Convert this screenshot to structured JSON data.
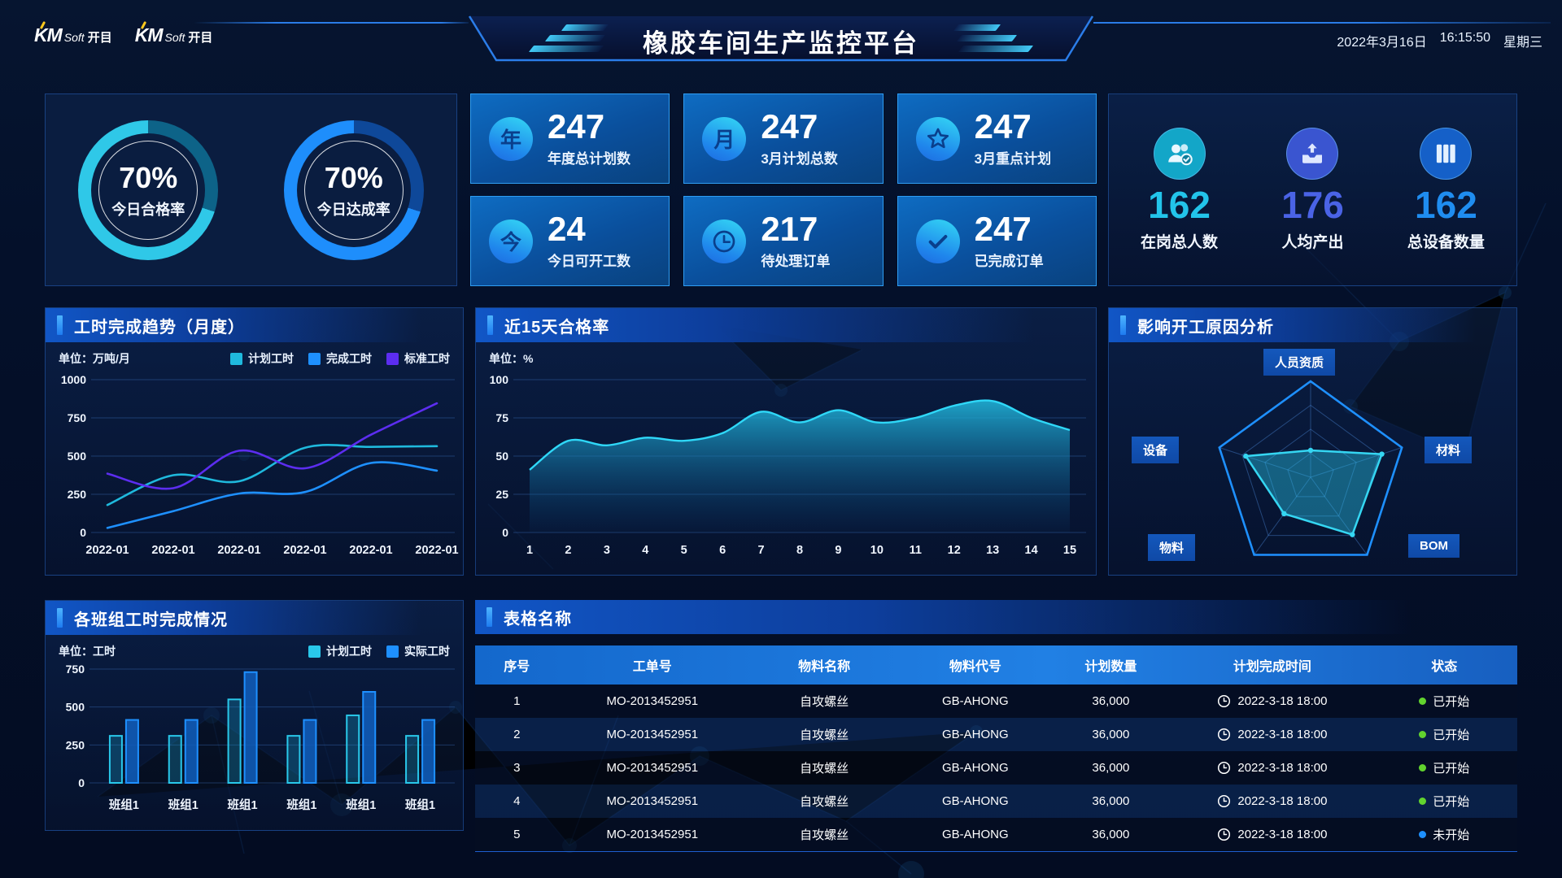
{
  "header": {
    "logo": {
      "mark": "KM",
      "soft": "Soft",
      "cjk": "开目"
    },
    "title": "橡胶车间生产监控平台",
    "date": "2022年3月16日",
    "time": "16:15:50",
    "weekday": "星期三"
  },
  "gauges": [
    {
      "value": "70%",
      "pct": 70,
      "label": "今日合格率",
      "color": "#2fc8e8",
      "track": "#0d6388"
    },
    {
      "value": "70%",
      "pct": 70,
      "label": "今日达成率",
      "color": "#1e8efc",
      "track": "#0e4899"
    }
  ],
  "stat_cards": [
    {
      "icon": "year-icon",
      "glyph": "年",
      "value": "247",
      "label": "年度总计划数"
    },
    {
      "icon": "month-icon",
      "glyph": "月",
      "value": "247",
      "label": "3月计划总数"
    },
    {
      "icon": "star-icon",
      "value": "247",
      "label": "3月重点计划"
    },
    {
      "icon": "today-icon",
      "glyph": "今",
      "value": "24",
      "label": "今日可开工数"
    },
    {
      "icon": "clock-icon",
      "value": "217",
      "label": "待处理订单"
    },
    {
      "icon": "check-icon",
      "value": "247",
      "label": "已完成订单"
    }
  ],
  "kpis": [
    {
      "icon": "users-icon",
      "value": "162",
      "label": "在岗总人数",
      "color": "#22c4ea",
      "bg": "#13a6c8"
    },
    {
      "icon": "output-icon",
      "value": "176",
      "label": "人均产出",
      "color": "#4a63e6",
      "bg": "#3a55d0"
    },
    {
      "icon": "devices-icon",
      "value": "162",
      "label": "总设备数量",
      "color": "#1f8df0",
      "bg": "#1560c8"
    }
  ],
  "panels": {
    "trend": {
      "title": "工时完成趋势（月度）",
      "unit": "单位：万吨/月"
    },
    "pass": {
      "title": "近15天合格率",
      "unit": "单位：%"
    },
    "radar": {
      "title": "影响开工原因分析"
    },
    "teams": {
      "title": "各班组工时完成情况",
      "unit": "单位：工时"
    },
    "table": {
      "title": "表格名称",
      "columns": [
        "序号",
        "工单号",
        "物料名称",
        "物料代号",
        "计划数量",
        "计划完成时间",
        "状态"
      ],
      "rows": [
        {
          "no": "1",
          "order": "MO-2013452951",
          "material": "自攻螺丝",
          "code": "GB-AHONG",
          "qty": "36,000",
          "time": "2022-3-18 18:00",
          "status": "已开始",
          "dot": "#62d32e"
        },
        {
          "no": "2",
          "order": "MO-2013452951",
          "material": "自攻螺丝",
          "code": "GB-AHONG",
          "qty": "36,000",
          "time": "2022-3-18 18:00",
          "status": "已开始",
          "dot": "#62d32e"
        },
        {
          "no": "3",
          "order": "MO-2013452951",
          "material": "自攻螺丝",
          "code": "GB-AHONG",
          "qty": "36,000",
          "time": "2022-3-18 18:00",
          "status": "已开始",
          "dot": "#62d32e"
        },
        {
          "no": "4",
          "order": "MO-2013452951",
          "material": "自攻螺丝",
          "code": "GB-AHONG",
          "qty": "36,000",
          "time": "2022-3-18 18:00",
          "status": "已开始",
          "dot": "#62d32e"
        },
        {
          "no": "5",
          "order": "MO-2013452951",
          "material": "自攻螺丝",
          "code": "GB-AHONG",
          "qty": "36,000",
          "time": "2022-3-18 18:00",
          "status": "未开始",
          "dot": "#1e90ff"
        }
      ]
    }
  },
  "chart_data": [
    {
      "type": "line",
      "title": "工时完成趋势（月度）",
      "ylabel": "万吨/月",
      "ylim": [
        0,
        1000
      ],
      "yticks": [
        0,
        250,
        500,
        750,
        1000
      ],
      "categories": [
        "2022-01",
        "2022-01",
        "2022-01",
        "2022-01",
        "2022-01",
        "2022-01"
      ],
      "legend_position": "top-right",
      "grid": true,
      "series": [
        {
          "name": "计划工时",
          "color": "#1fb9dd",
          "values": [
            180,
            375,
            335,
            555,
            560,
            565
          ]
        },
        {
          "name": "完成工时",
          "color": "#1e90ff",
          "values": [
            30,
            140,
            255,
            265,
            455,
            405
          ]
        },
        {
          "name": "标准工时",
          "color": "#5c2df0",
          "values": [
            385,
            290,
            535,
            420,
            640,
            845
          ]
        }
      ]
    },
    {
      "type": "area",
      "title": "近15天合格率",
      "ylabel": "%",
      "ylim": [
        0,
        100
      ],
      "yticks": [
        0,
        25,
        50,
        75,
        100
      ],
      "grid": true,
      "x": [
        1,
        2,
        3,
        4,
        5,
        6,
        7,
        8,
        9,
        10,
        11,
        12,
        13,
        14,
        15
      ],
      "values": [
        41,
        60,
        57,
        62,
        60,
        65,
        79,
        72,
        80,
        72,
        75,
        83,
        86,
        75,
        67
      ],
      "color": "#2fd8f8"
    },
    {
      "type": "radar",
      "title": "影响开工原因分析",
      "max": 100,
      "categories": [
        "人员资质",
        "材料",
        "BOM",
        "物料",
        "设备"
      ],
      "values": [
        28,
        78,
        74,
        47,
        71
      ],
      "color": "#35d6f2"
    },
    {
      "type": "bar",
      "title": "各班组工时完成情况",
      "ylim": [
        0,
        750
      ],
      "yticks": [
        0,
        250,
        500,
        750
      ],
      "grid": true,
      "categories": [
        "班组1",
        "班组1",
        "班组1",
        "班组1",
        "班组1",
        "班组1"
      ],
      "series": [
        {
          "name": "计划工时",
          "color": "#29c8ea",
          "values": [
            310,
            310,
            550,
            310,
            445,
            310
          ]
        },
        {
          "name": "实际工时",
          "color": "#1e90ff",
          "values": [
            415,
            415,
            730,
            415,
            600,
            415
          ]
        }
      ]
    }
  ]
}
